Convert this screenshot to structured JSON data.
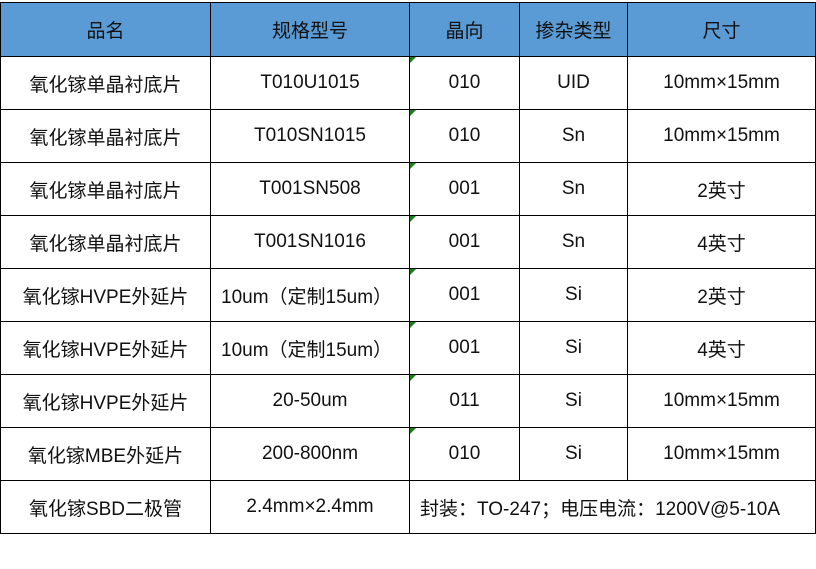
{
  "headers": [
    "品名",
    "规格型号",
    "晶向",
    "掺杂类型",
    "尺寸"
  ],
  "rows": [
    [
      "氧化镓单晶衬底片",
      "T010U1015",
      "010",
      "UID",
      "10mm×15mm"
    ],
    [
      "氧化镓单晶衬底片",
      "T010SN1015",
      "010",
      "Sn",
      "10mm×15mm"
    ],
    [
      "氧化镓单晶衬底片",
      "T001SN508",
      "001",
      "Sn",
      "2英寸"
    ],
    [
      "氧化镓单晶衬底片",
      "T001SN1016",
      "001",
      "Sn",
      "4英寸"
    ],
    [
      "氧化镓HVPE外延片",
      "10um（定制15um）",
      "001",
      "Si",
      "2英寸"
    ],
    [
      "氧化镓HVPE外延片",
      "10um（定制15um）",
      "001",
      "Si",
      "4英寸"
    ],
    [
      "氧化镓HVPE外延片",
      "20-50um",
      "011",
      "Si",
      "10mm×15mm"
    ],
    [
      "氧化镓MBE外延片",
      "200-800nm",
      "010",
      "Si",
      "10mm×15mm"
    ]
  ],
  "last_row": [
    "氧化镓SBD二极管",
    "2.4mm×2.4mm",
    "封装：TO-247；电压电流：1200V@5-10A"
  ],
  "colors": {
    "header_bg": "#5b9bd5",
    "text_indicator": "#1a7f1a"
  }
}
